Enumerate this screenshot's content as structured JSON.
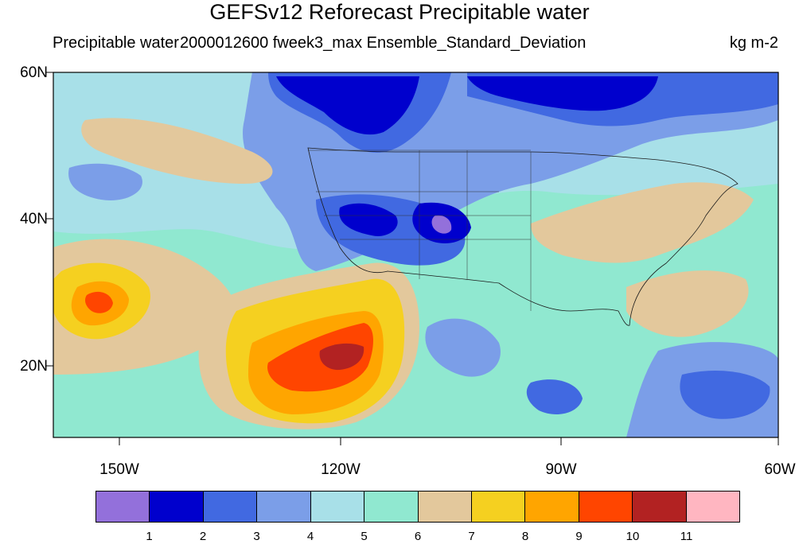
{
  "title": "GEFSv12 Reforecast Precipitable water",
  "subtitle_left": "Precipitable water",
  "subtitle_center": "2000012600 fweek3_max Ensemble_Standard_Deviation",
  "subtitle_right": "kg m-2",
  "lat_labels": [
    "60N",
    "40N",
    "20N"
  ],
  "lon_labels": [
    "150W",
    "120W",
    "90W",
    "60W"
  ],
  "map_extent": {
    "lon_min": -159,
    "lon_max": -60,
    "lat_min": 10,
    "lat_max": 60
  },
  "colorbar": {
    "labels": [
      "1",
      "2",
      "3",
      "4",
      "5",
      "6",
      "7",
      "8",
      "9",
      "10",
      "11"
    ],
    "colors": [
      "#9370db",
      "#0000cd",
      "#4169e1",
      "#7b9ee8",
      "#a8e0e8",
      "#90e8d0",
      "#e3c89c",
      "#f5d020",
      "#ffa500",
      "#ff4500",
      "#b22222",
      "#ffb6c1"
    ]
  },
  "colors": {
    "background": "#90e8d0"
  }
}
